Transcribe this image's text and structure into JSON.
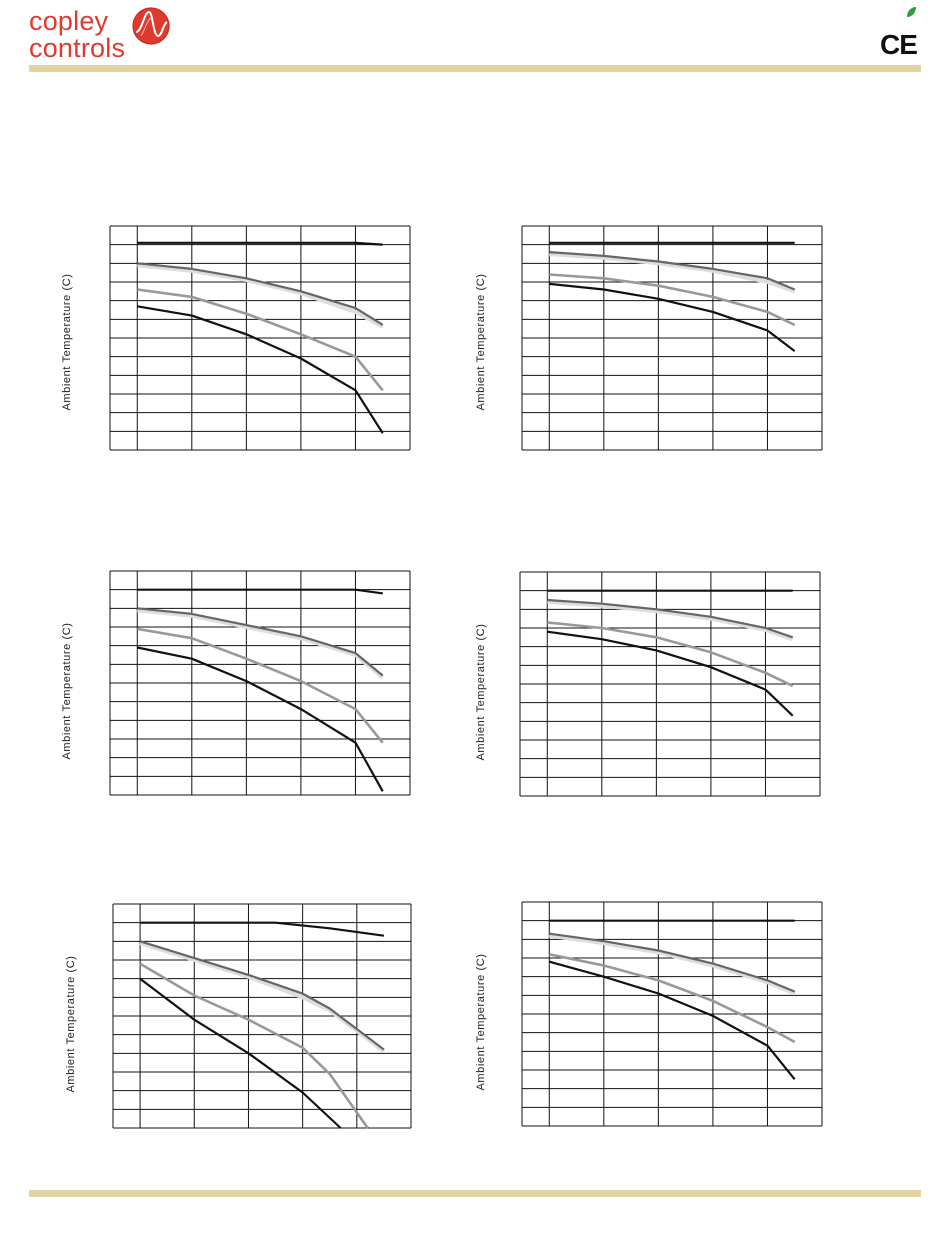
{
  "header": {
    "logo_line1": "copley",
    "logo_line2": "controls",
    "ce_mark": "CE"
  },
  "colors": {
    "brand_red": "#e03a2f",
    "rule_tan": "#e3d3a1",
    "series_black": "#111111",
    "series_dark_gray": "#666666",
    "series_light_gray": "#dddddd",
    "series_mid_gray": "#999999"
  },
  "icons": [
    "copley-logo-icon",
    "leaf-icon",
    "ce-mark-icon"
  ],
  "chart_data": [
    {
      "type": "line",
      "ylabel": "Ambient Temperature (C)",
      "xlim": [
        0,
        5.5
      ],
      "ylim": [
        0,
        12
      ],
      "grid": true,
      "x_ticks": [
        0.5,
        1.5,
        2.5,
        3.5,
        4.5,
        5.5
      ],
      "series": [
        {
          "color": "#111111",
          "width": 2.2,
          "points": [
            [
              0.5,
              11.1
            ],
            [
              1.5,
              11.1
            ],
            [
              2.5,
              11.1
            ],
            [
              3.5,
              11.1
            ],
            [
              4.5,
              11.1
            ],
            [
              5.0,
              11.0
            ]
          ]
        },
        {
          "color": "#dddddd",
          "width": 4,
          "points": [
            [
              0.5,
              9.9
            ],
            [
              1.5,
              9.6
            ],
            [
              2.5,
              9.1
            ],
            [
              3.5,
              8.4
            ],
            [
              4.5,
              7.4
            ],
            [
              5.0,
              6.6
            ]
          ]
        },
        {
          "color": "#666666",
          "width": 2.2,
          "points": [
            [
              0.5,
              10.0
            ],
            [
              1.5,
              9.7
            ],
            [
              2.5,
              9.2
            ],
            [
              3.5,
              8.5
            ],
            [
              4.5,
              7.6
            ],
            [
              5.0,
              6.7
            ]
          ]
        },
        {
          "color": "#999999",
          "width": 2.6,
          "points": [
            [
              0.5,
              8.6
            ],
            [
              1.5,
              8.2
            ],
            [
              2.5,
              7.3
            ],
            [
              3.5,
              6.2
            ],
            [
              4.5,
              5.0
            ],
            [
              5.0,
              3.2
            ]
          ]
        },
        {
          "color": "#111111",
          "width": 2.2,
          "points": [
            [
              0.5,
              7.7
            ],
            [
              1.5,
              7.2
            ],
            [
              2.5,
              6.2
            ],
            [
              3.5,
              4.9
            ],
            [
              4.5,
              3.2
            ],
            [
              5.0,
              0.9
            ]
          ]
        }
      ]
    },
    {
      "type": "line",
      "ylabel": "Ambient Temperature (C)",
      "xlim": [
        0,
        5.5
      ],
      "ylim": [
        0,
        12
      ],
      "grid": true,
      "x_ticks": [
        0.5,
        1.5,
        2.5,
        3.5,
        4.5,
        5.5
      ],
      "series": [
        {
          "color": "#111111",
          "width": 2.2,
          "points": [
            [
              0.5,
              11.1
            ],
            [
              1.5,
              11.1
            ],
            [
              2.5,
              11.1
            ],
            [
              3.5,
              11.1
            ],
            [
              4.5,
              11.1
            ],
            [
              5.0,
              11.1
            ]
          ]
        },
        {
          "color": "#dddddd",
          "width": 4,
          "points": [
            [
              0.5,
              10.5
            ],
            [
              1.5,
              10.3
            ],
            [
              2.5,
              10.0
            ],
            [
              3.5,
              9.6
            ],
            [
              4.5,
              9.0
            ],
            [
              5.0,
              8.5
            ]
          ]
        },
        {
          "color": "#666666",
          "width": 2.2,
          "points": [
            [
              0.5,
              10.6
            ],
            [
              1.5,
              10.4
            ],
            [
              2.5,
              10.1
            ],
            [
              3.5,
              9.7
            ],
            [
              4.5,
              9.2
            ],
            [
              5.0,
              8.6
            ]
          ]
        },
        {
          "color": "#999999",
          "width": 2.6,
          "points": [
            [
              0.5,
              9.4
            ],
            [
              1.5,
              9.2
            ],
            [
              2.5,
              8.8
            ],
            [
              3.5,
              8.2
            ],
            [
              4.5,
              7.4
            ],
            [
              5.0,
              6.7
            ]
          ]
        },
        {
          "color": "#111111",
          "width": 2.2,
          "points": [
            [
              0.5,
              8.9
            ],
            [
              1.5,
              8.6
            ],
            [
              2.5,
              8.1
            ],
            [
              3.5,
              7.4
            ],
            [
              4.5,
              6.4
            ],
            [
              5.0,
              5.3
            ]
          ]
        }
      ]
    },
    {
      "type": "line",
      "ylabel": "Ambient Temperature (C)",
      "xlim": [
        0,
        5.5
      ],
      "ylim": [
        0,
        12
      ],
      "grid": true,
      "x_ticks": [
        0.5,
        1.5,
        2.5,
        3.5,
        4.5,
        5.5
      ],
      "series": [
        {
          "color": "#111111",
          "width": 2.2,
          "points": [
            [
              0.5,
              11.0
            ],
            [
              1.5,
              11.0
            ],
            [
              2.5,
              11.0
            ],
            [
              3.5,
              11.0
            ],
            [
              4.5,
              11.0
            ],
            [
              5.0,
              10.8
            ]
          ]
        },
        {
          "color": "#dddddd",
          "width": 4,
          "points": [
            [
              0.5,
              9.9
            ],
            [
              1.5,
              9.6
            ],
            [
              2.5,
              9.0
            ],
            [
              3.5,
              8.4
            ],
            [
              4.5,
              7.5
            ],
            [
              5.0,
              6.3
            ]
          ]
        },
        {
          "color": "#666666",
          "width": 2.2,
          "points": [
            [
              0.5,
              10.0
            ],
            [
              1.5,
              9.7
            ],
            [
              2.5,
              9.1
            ],
            [
              3.5,
              8.5
            ],
            [
              4.5,
              7.6
            ],
            [
              5.0,
              6.4
            ]
          ]
        },
        {
          "color": "#999999",
          "width": 2.6,
          "points": [
            [
              0.5,
              8.9
            ],
            [
              1.5,
              8.4
            ],
            [
              2.5,
              7.3
            ],
            [
              3.5,
              6.1
            ],
            [
              4.5,
              4.6
            ],
            [
              5.0,
              2.8
            ]
          ]
        },
        {
          "color": "#111111",
          "width": 2.2,
          "points": [
            [
              0.5,
              7.9
            ],
            [
              1.5,
              7.3
            ],
            [
              2.5,
              6.1
            ],
            [
              3.5,
              4.6
            ],
            [
              4.5,
              2.8
            ],
            [
              5.0,
              0.2
            ]
          ]
        }
      ]
    },
    {
      "type": "line",
      "ylabel": "Ambient Temperature (C)",
      "xlim": [
        0,
        5.5
      ],
      "ylim": [
        0,
        12
      ],
      "grid": true,
      "x_ticks": [
        0.5,
        1.5,
        2.5,
        3.5,
        4.5,
        5.5
      ],
      "series": [
        {
          "color": "#111111",
          "width": 2.2,
          "points": [
            [
              0.5,
              11.0
            ],
            [
              1.5,
              11.0
            ],
            [
              2.5,
              11.0
            ],
            [
              3.5,
              11.0
            ],
            [
              4.5,
              11.0
            ],
            [
              5.0,
              11.0
            ]
          ]
        },
        {
          "color": "#dddddd",
          "width": 4,
          "points": [
            [
              0.5,
              10.4
            ],
            [
              1.5,
              10.2
            ],
            [
              2.5,
              9.9
            ],
            [
              3.5,
              9.5
            ],
            [
              4.5,
              8.9
            ],
            [
              5.0,
              8.4
            ]
          ]
        },
        {
          "color": "#666666",
          "width": 2.2,
          "points": [
            [
              0.5,
              10.5
            ],
            [
              1.5,
              10.3
            ],
            [
              2.5,
              10.0
            ],
            [
              3.5,
              9.6
            ],
            [
              4.5,
              9.0
            ],
            [
              5.0,
              8.5
            ]
          ]
        },
        {
          "color": "#999999",
          "width": 2.6,
          "points": [
            [
              0.5,
              9.3
            ],
            [
              1.5,
              9.0
            ],
            [
              2.5,
              8.5
            ],
            [
              3.5,
              7.7
            ],
            [
              4.5,
              6.6
            ],
            [
              5.0,
              5.9
            ]
          ]
        },
        {
          "color": "#111111",
          "width": 2.2,
          "points": [
            [
              0.5,
              8.8
            ],
            [
              1.5,
              8.4
            ],
            [
              2.5,
              7.8
            ],
            [
              3.5,
              6.9
            ],
            [
              4.5,
              5.7
            ],
            [
              5.0,
              4.3
            ]
          ]
        }
      ]
    },
    {
      "type": "line",
      "ylabel": "Ambient Temperature (C)",
      "xlim": [
        0,
        5.5
      ],
      "ylim": [
        0,
        12
      ],
      "grid": true,
      "x_ticks": [
        0.5,
        1.5,
        2.5,
        3.5,
        4.5,
        5.5
      ],
      "series": [
        {
          "color": "#111111",
          "width": 2.2,
          "points": [
            [
              0.5,
              11.0
            ],
            [
              1.5,
              11.0
            ],
            [
              2.5,
              11.0
            ],
            [
              3.0,
              11.0
            ],
            [
              4.0,
              10.7
            ],
            [
              5.0,
              10.3
            ]
          ]
        },
        {
          "color": "#dddddd",
          "width": 4,
          "points": [
            [
              0.5,
              9.9
            ],
            [
              1.5,
              9.0
            ],
            [
              2.5,
              8.1
            ],
            [
              3.5,
              7.0
            ],
            [
              4.0,
              6.3
            ],
            [
              5.0,
              4.1
            ]
          ]
        },
        {
          "color": "#666666",
          "width": 2.2,
          "points": [
            [
              0.5,
              10.0
            ],
            [
              1.5,
              9.1
            ],
            [
              2.5,
              8.2
            ],
            [
              3.5,
              7.2
            ],
            [
              4.0,
              6.4
            ],
            [
              5.0,
              4.2
            ]
          ]
        },
        {
          "color": "#999999",
          "width": 2.6,
          "points": [
            [
              0.5,
              8.8
            ],
            [
              1.5,
              7.1
            ],
            [
              2.5,
              5.8
            ],
            [
              3.5,
              4.3
            ],
            [
              4.0,
              2.9
            ],
            [
              4.7,
              0.0
            ]
          ]
        },
        {
          "color": "#111111",
          "width": 2.2,
          "points": [
            [
              0.5,
              8.0
            ],
            [
              1.5,
              5.8
            ],
            [
              2.5,
              4.0
            ],
            [
              3.5,
              1.9
            ],
            [
              4.2,
              0.0
            ]
          ]
        }
      ]
    },
    {
      "type": "line",
      "ylabel": "Ambient Temperature (C)",
      "xlim": [
        0,
        5.5
      ],
      "ylim": [
        0,
        12
      ],
      "grid": true,
      "x_ticks": [
        0.5,
        1.5,
        2.5,
        3.5,
        4.5,
        5.5
      ],
      "series": [
        {
          "color": "#111111",
          "width": 2.2,
          "points": [
            [
              0.5,
              11.0
            ],
            [
              1.5,
              11.0
            ],
            [
              2.5,
              11.0
            ],
            [
              3.5,
              11.0
            ],
            [
              4.5,
              11.0
            ],
            [
              5.0,
              11.0
            ]
          ]
        },
        {
          "color": "#dddddd",
          "width": 4,
          "points": [
            [
              0.5,
              10.2
            ],
            [
              1.5,
              9.8
            ],
            [
              2.5,
              9.3
            ],
            [
              3.5,
              8.6
            ],
            [
              4.5,
              7.7
            ],
            [
              5.0,
              7.1
            ]
          ]
        },
        {
          "color": "#666666",
          "width": 2.2,
          "points": [
            [
              0.5,
              10.3
            ],
            [
              1.5,
              9.9
            ],
            [
              2.5,
              9.4
            ],
            [
              3.5,
              8.7
            ],
            [
              4.5,
              7.8
            ],
            [
              5.0,
              7.2
            ]
          ]
        },
        {
          "color": "#999999",
          "width": 2.6,
          "points": [
            [
              0.5,
              9.2
            ],
            [
              1.5,
              8.6
            ],
            [
              2.5,
              7.8
            ],
            [
              3.5,
              6.7
            ],
            [
              4.5,
              5.3
            ],
            [
              5.0,
              4.5
            ]
          ]
        },
        {
          "color": "#111111",
          "width": 2.2,
          "points": [
            [
              0.5,
              8.8
            ],
            [
              1.5,
              8.0
            ],
            [
              2.5,
              7.1
            ],
            [
              3.5,
              5.9
            ],
            [
              4.5,
              4.3
            ],
            [
              5.0,
              2.5
            ]
          ]
        }
      ]
    }
  ]
}
